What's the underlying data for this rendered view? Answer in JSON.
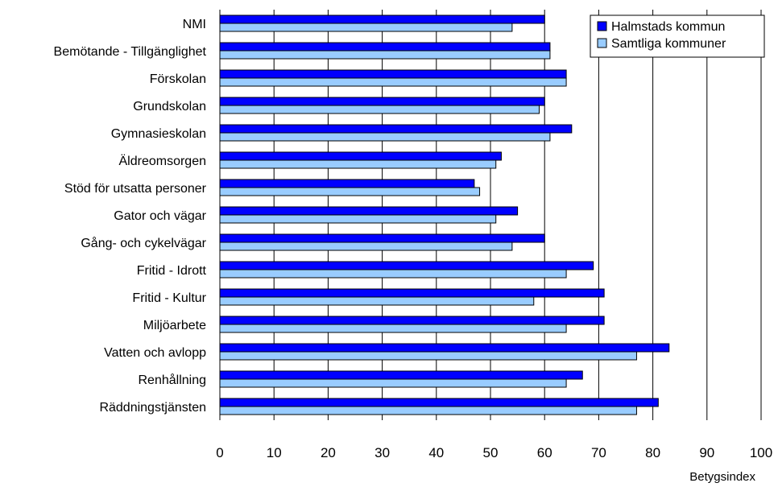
{
  "chart_data": {
    "type": "bar",
    "orientation": "horizontal",
    "categories": [
      "NMI",
      "Bemötande - Tillgänglighet",
      "Förskolan",
      "Grundskolan",
      "Gymnasieskolan",
      "Äldreomsorgen",
      "Stöd för utsatta personer",
      "Gator och vägar",
      "Gång- och cykelvägar",
      "Fritid - Idrott",
      "Fritid - Kultur",
      "Miljöarbete",
      "Vatten och avlopp",
      "Renhållning",
      "Räddningstjänsten"
    ],
    "series": [
      {
        "name": "Halmstads kommun",
        "color": "#0000ff",
        "values": [
          60,
          61,
          64,
          60,
          65,
          52,
          47,
          55,
          60,
          69,
          71,
          71,
          83,
          67,
          81
        ]
      },
      {
        "name": "Samtliga kommuner",
        "color": "#99ccff",
        "values": [
          54,
          61,
          64,
          59,
          61,
          51,
          48,
          51,
          54,
          64,
          58,
          64,
          77,
          64,
          77
        ]
      }
    ],
    "title": "",
    "xlabel": "Betygsindex",
    "ylabel": "",
    "xlim": [
      0,
      100
    ],
    "xticks": [
      0,
      10,
      20,
      30,
      40,
      50,
      60,
      70,
      80,
      90,
      100
    ],
    "grid": "vertical",
    "legend": "top-right"
  }
}
